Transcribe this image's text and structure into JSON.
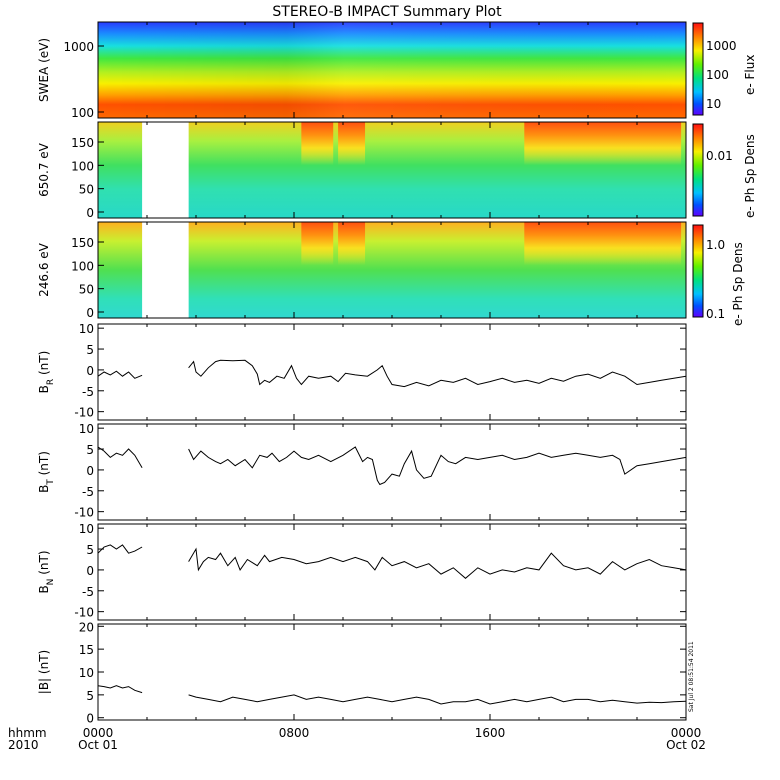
{
  "chart_data": {
    "title": "STEREO-B IMPACT Summary Plot",
    "x_axis": {
      "label_lines": [
        "hhmm",
        "2010"
      ],
      "ticks": [
        {
          "hour": 0,
          "top": "0000",
          "bottom": "Oct 01"
        },
        {
          "hour": 8,
          "top": "0800",
          "bottom": ""
        },
        {
          "hour": 16,
          "top": "1600",
          "bottom": ""
        },
        {
          "hour": 24,
          "top": "0000",
          "bottom": "Oct 02"
        }
      ],
      "range_hours": [
        0,
        24
      ]
    },
    "timestamp": "Sat Jul  2 08:51:54 2011",
    "panels": [
      {
        "id": "swea",
        "type": "heatmap",
        "ylabel": "SWEA (eV)",
        "yscale": "log",
        "yticks": [
          "1000",
          "100"
        ],
        "colorbar_label": "e- Flux",
        "colorbar_ticks": [
          "1000",
          "100",
          "10"
        ],
        "data_gaps_hours": []
      },
      {
        "id": "pad_650",
        "type": "heatmap",
        "ylabel": "650.7 eV",
        "ylim": [
          0,
          180
        ],
        "yticks": [
          "150",
          "100",
          "50",
          "0"
        ],
        "colorbar_label": "e- Ph Sp Dens",
        "colorbar_ticks": [
          "0.01"
        ],
        "data_gaps_hours": [
          [
            1.8,
            3.7
          ]
        ],
        "bands": [
          {
            "from": 8.3,
            "to": 9.6,
            "level": "high"
          },
          {
            "from": 9.8,
            "to": 10.9,
            "level": "high"
          },
          {
            "from": 17.4,
            "to": 23.8,
            "level": "high"
          }
        ]
      },
      {
        "id": "pad_246",
        "type": "heatmap",
        "ylabel": "246.6 eV",
        "ylim": [
          0,
          180
        ],
        "yticks": [
          "150",
          "100",
          "50",
          "0"
        ],
        "colorbar_label": "e- Ph Sp Dens",
        "colorbar_ticks": [
          "1.0",
          "0.1"
        ],
        "data_gaps_hours": [
          [
            1.8,
            3.7
          ]
        ],
        "bands": [
          {
            "from": 8.3,
            "to": 9.6,
            "level": "high"
          },
          {
            "from": 9.8,
            "to": 10.9,
            "level": "high"
          },
          {
            "from": 17.4,
            "to": 23.8,
            "level": "high"
          }
        ]
      },
      {
        "id": "br",
        "type": "line",
        "ylabel": "B",
        "ylabel_sub": "R",
        "ylabel_unit": " (nT)",
        "ylim": [
          -12,
          11
        ],
        "yticks": [
          10,
          5,
          0,
          -5,
          -10
        ],
        "series": [
          {
            "x": [
              0,
              0.25,
              0.5,
              0.75,
              1.0,
              1.25,
              1.5,
              1.8
            ],
            "y": [
              -1.5,
              -0.5,
              -1.2,
              -0.3,
              -1.5,
              -0.5,
              -2.0,
              -1.3
            ]
          },
          {
            "x": [
              3.7,
              3.9,
              4.0,
              4.2,
              4.5,
              4.8,
              5.0,
              5.5,
              6.0,
              6.3,
              6.5,
              6.6,
              6.8,
              7.0,
              7.3,
              7.6,
              7.9,
              8.1,
              8.3,
              8.6,
              9.0,
              9.5,
              9.8,
              10.1,
              10.5,
              11.0,
              11.4,
              11.6,
              11.8,
              12.0,
              12.5,
              13.0,
              13.5,
              14.0,
              14.5,
              15.0,
              15.5,
              16.0,
              16.5,
              17.0,
              17.5,
              18.0,
              18.5,
              19.0,
              19.5,
              20.0,
              20.5,
              21.0,
              21.5,
              22.0,
              22.5,
              23.0,
              23.5,
              24.0
            ],
            "y": [
              0.5,
              2.0,
              -0.5,
              -1.5,
              0.5,
              2.0,
              2.3,
              2.2,
              2.3,
              1.0,
              -1.0,
              -3.5,
              -2.5,
              -3.0,
              -1.5,
              -2.0,
              1.0,
              -2.0,
              -3.5,
              -1.5,
              -2.0,
              -1.5,
              -2.8,
              -0.8,
              -1.2,
              -1.5,
              0.0,
              1.0,
              -1.5,
              -3.5,
              -4.0,
              -3.0,
              -3.8,
              -2.5,
              -3.0,
              -2.0,
              -3.5,
              -2.8,
              -2.0,
              -3.0,
              -2.5,
              -3.2,
              -2.0,
              -2.7,
              -1.5,
              -1.0,
              -2.0,
              -0.5,
              -1.5,
              -3.5,
              -3.0,
              -2.5,
              -2.0,
              -1.5
            ]
          }
        ]
      },
      {
        "id": "bt",
        "type": "line",
        "ylabel": "B",
        "ylabel_sub": "T",
        "ylabel_unit": " (nT)",
        "ylim": [
          -12,
          11
        ],
        "yticks": [
          10,
          5,
          0,
          -5,
          -10
        ],
        "series": [
          {
            "x": [
              0,
              0.25,
              0.5,
              0.75,
              1.0,
              1.25,
              1.5,
              1.8
            ],
            "y": [
              5.5,
              4.5,
              3.0,
              4.0,
              3.5,
              5.0,
              3.5,
              0.5
            ]
          },
          {
            "x": [
              3.7,
              3.9,
              4.2,
              4.5,
              4.8,
              5.0,
              5.3,
              5.6,
              6.0,
              6.3,
              6.6,
              6.9,
              7.1,
              7.4,
              7.7,
              8.0,
              8.3,
              8.6,
              9.0,
              9.5,
              10.0,
              10.5,
              10.8,
              11.0,
              11.2,
              11.4,
              11.5,
              11.7,
              12.0,
              12.3,
              12.5,
              12.8,
              13.0,
              13.3,
              13.6,
              14.0,
              14.3,
              14.6,
              15.0,
              15.5,
              16.0,
              16.5,
              17.0,
              17.5,
              18.0,
              18.5,
              19.0,
              19.5,
              20.0,
              20.5,
              21.0,
              21.3,
              21.5,
              22.0,
              22.5,
              23.0,
              23.5,
              24.0
            ],
            "y": [
              5.0,
              2.5,
              4.5,
              3.0,
              2.0,
              1.5,
              2.5,
              1.0,
              2.5,
              0.5,
              3.5,
              3.0,
              4.0,
              2.0,
              3.0,
              4.5,
              3.0,
              2.5,
              3.5,
              2.0,
              3.5,
              5.5,
              2.0,
              3.0,
              2.5,
              -2.5,
              -3.5,
              -3.0,
              -1.0,
              -1.5,
              1.5,
              4.5,
              0.0,
              -2.0,
              -1.5,
              3.5,
              2.0,
              1.5,
              3.0,
              2.5,
              3.0,
              3.5,
              2.5,
              3.0,
              4.0,
              3.0,
              3.5,
              4.0,
              3.5,
              3.0,
              3.5,
              2.5,
              -1.0,
              1.0,
              1.5,
              2.0,
              2.5,
              3.0
            ]
          }
        ]
      },
      {
        "id": "bn",
        "type": "line",
        "ylabel": "B",
        "ylabel_sub": "N",
        "ylabel_unit": " (nT)",
        "ylim": [
          -12,
          11
        ],
        "yticks": [
          10,
          5,
          0,
          -5,
          -10
        ],
        "series": [
          {
            "x": [
              0,
              0.25,
              0.5,
              0.75,
              1.0,
              1.25,
              1.5,
              1.8
            ],
            "y": [
              4.0,
              5.5,
              6.0,
              5.0,
              6.0,
              4.0,
              4.5,
              5.5
            ]
          },
          {
            "x": [
              3.7,
              4.0,
              4.1,
              4.3,
              4.5,
              4.8,
              5.0,
              5.3,
              5.6,
              5.8,
              6.1,
              6.5,
              6.8,
              7.0,
              7.5,
              8.0,
              8.5,
              9.0,
              9.5,
              10.0,
              10.5,
              11.0,
              11.3,
              11.6,
              12.0,
              12.5,
              13.0,
              13.5,
              14.0,
              14.5,
              15.0,
              15.5,
              16.0,
              16.5,
              17.0,
              17.5,
              18.0,
              18.5,
              19.0,
              19.5,
              20.0,
              20.5,
              21.0,
              21.5,
              22.0,
              22.5,
              23.0,
              23.5,
              24.0
            ],
            "y": [
              2.0,
              5.0,
              0.0,
              2.0,
              3.0,
              2.5,
              4.0,
              1.0,
              3.0,
              0.0,
              2.5,
              1.0,
              3.5,
              2.0,
              3.0,
              2.5,
              1.5,
              2.0,
              3.0,
              2.0,
              3.0,
              2.0,
              0.0,
              3.0,
              1.0,
              2.0,
              0.5,
              1.5,
              -1.0,
              0.5,
              -2.0,
              0.5,
              -1.0,
              0.0,
              -0.5,
              0.5,
              0.0,
              4.0,
              1.0,
              0.0,
              0.5,
              -1.0,
              2.0,
              0.0,
              1.5,
              2.5,
              1.0,
              0.5,
              0.0
            ]
          }
        ]
      },
      {
        "id": "bmag",
        "type": "line",
        "ylabel": "|B| (nT)",
        "ylim": [
          -0.5,
          20.5
        ],
        "yticks": [
          20,
          15,
          10,
          5,
          0
        ],
        "series": [
          {
            "x": [
              0,
              0.25,
              0.5,
              0.75,
              1.0,
              1.25,
              1.5,
              1.8
            ],
            "y": [
              7.0,
              6.8,
              6.5,
              7.0,
              6.5,
              6.8,
              6.0,
              5.5
            ]
          },
          {
            "x": [
              3.7,
              4.0,
              4.5,
              5.0,
              5.5,
              6.0,
              6.5,
              7.0,
              7.5,
              8.0,
              8.5,
              9.0,
              9.5,
              10.0,
              10.5,
              11.0,
              11.5,
              12.0,
              12.5,
              13.0,
              13.5,
              14.0,
              14.5,
              15.0,
              15.5,
              16.0,
              16.5,
              17.0,
              17.5,
              18.0,
              18.5,
              19.0,
              19.5,
              20.0,
              20.5,
              21.0,
              21.5,
              22.0,
              22.5,
              23.0,
              23.5,
              24.0
            ],
            "y": [
              5.0,
              4.5,
              4.0,
              3.5,
              4.5,
              4.0,
              3.5,
              4.0,
              4.5,
              5.0,
              4.0,
              4.5,
              4.0,
              3.5,
              4.0,
              4.5,
              4.0,
              3.5,
              4.0,
              4.5,
              4.0,
              3.0,
              3.5,
              3.5,
              4.0,
              3.0,
              3.5,
              4.0,
              3.5,
              4.0,
              4.5,
              3.5,
              4.0,
              4.0,
              3.5,
              3.8,
              3.5,
              3.2,
              3.4,
              3.3,
              3.5,
              3.6
            ]
          }
        ]
      }
    ]
  }
}
